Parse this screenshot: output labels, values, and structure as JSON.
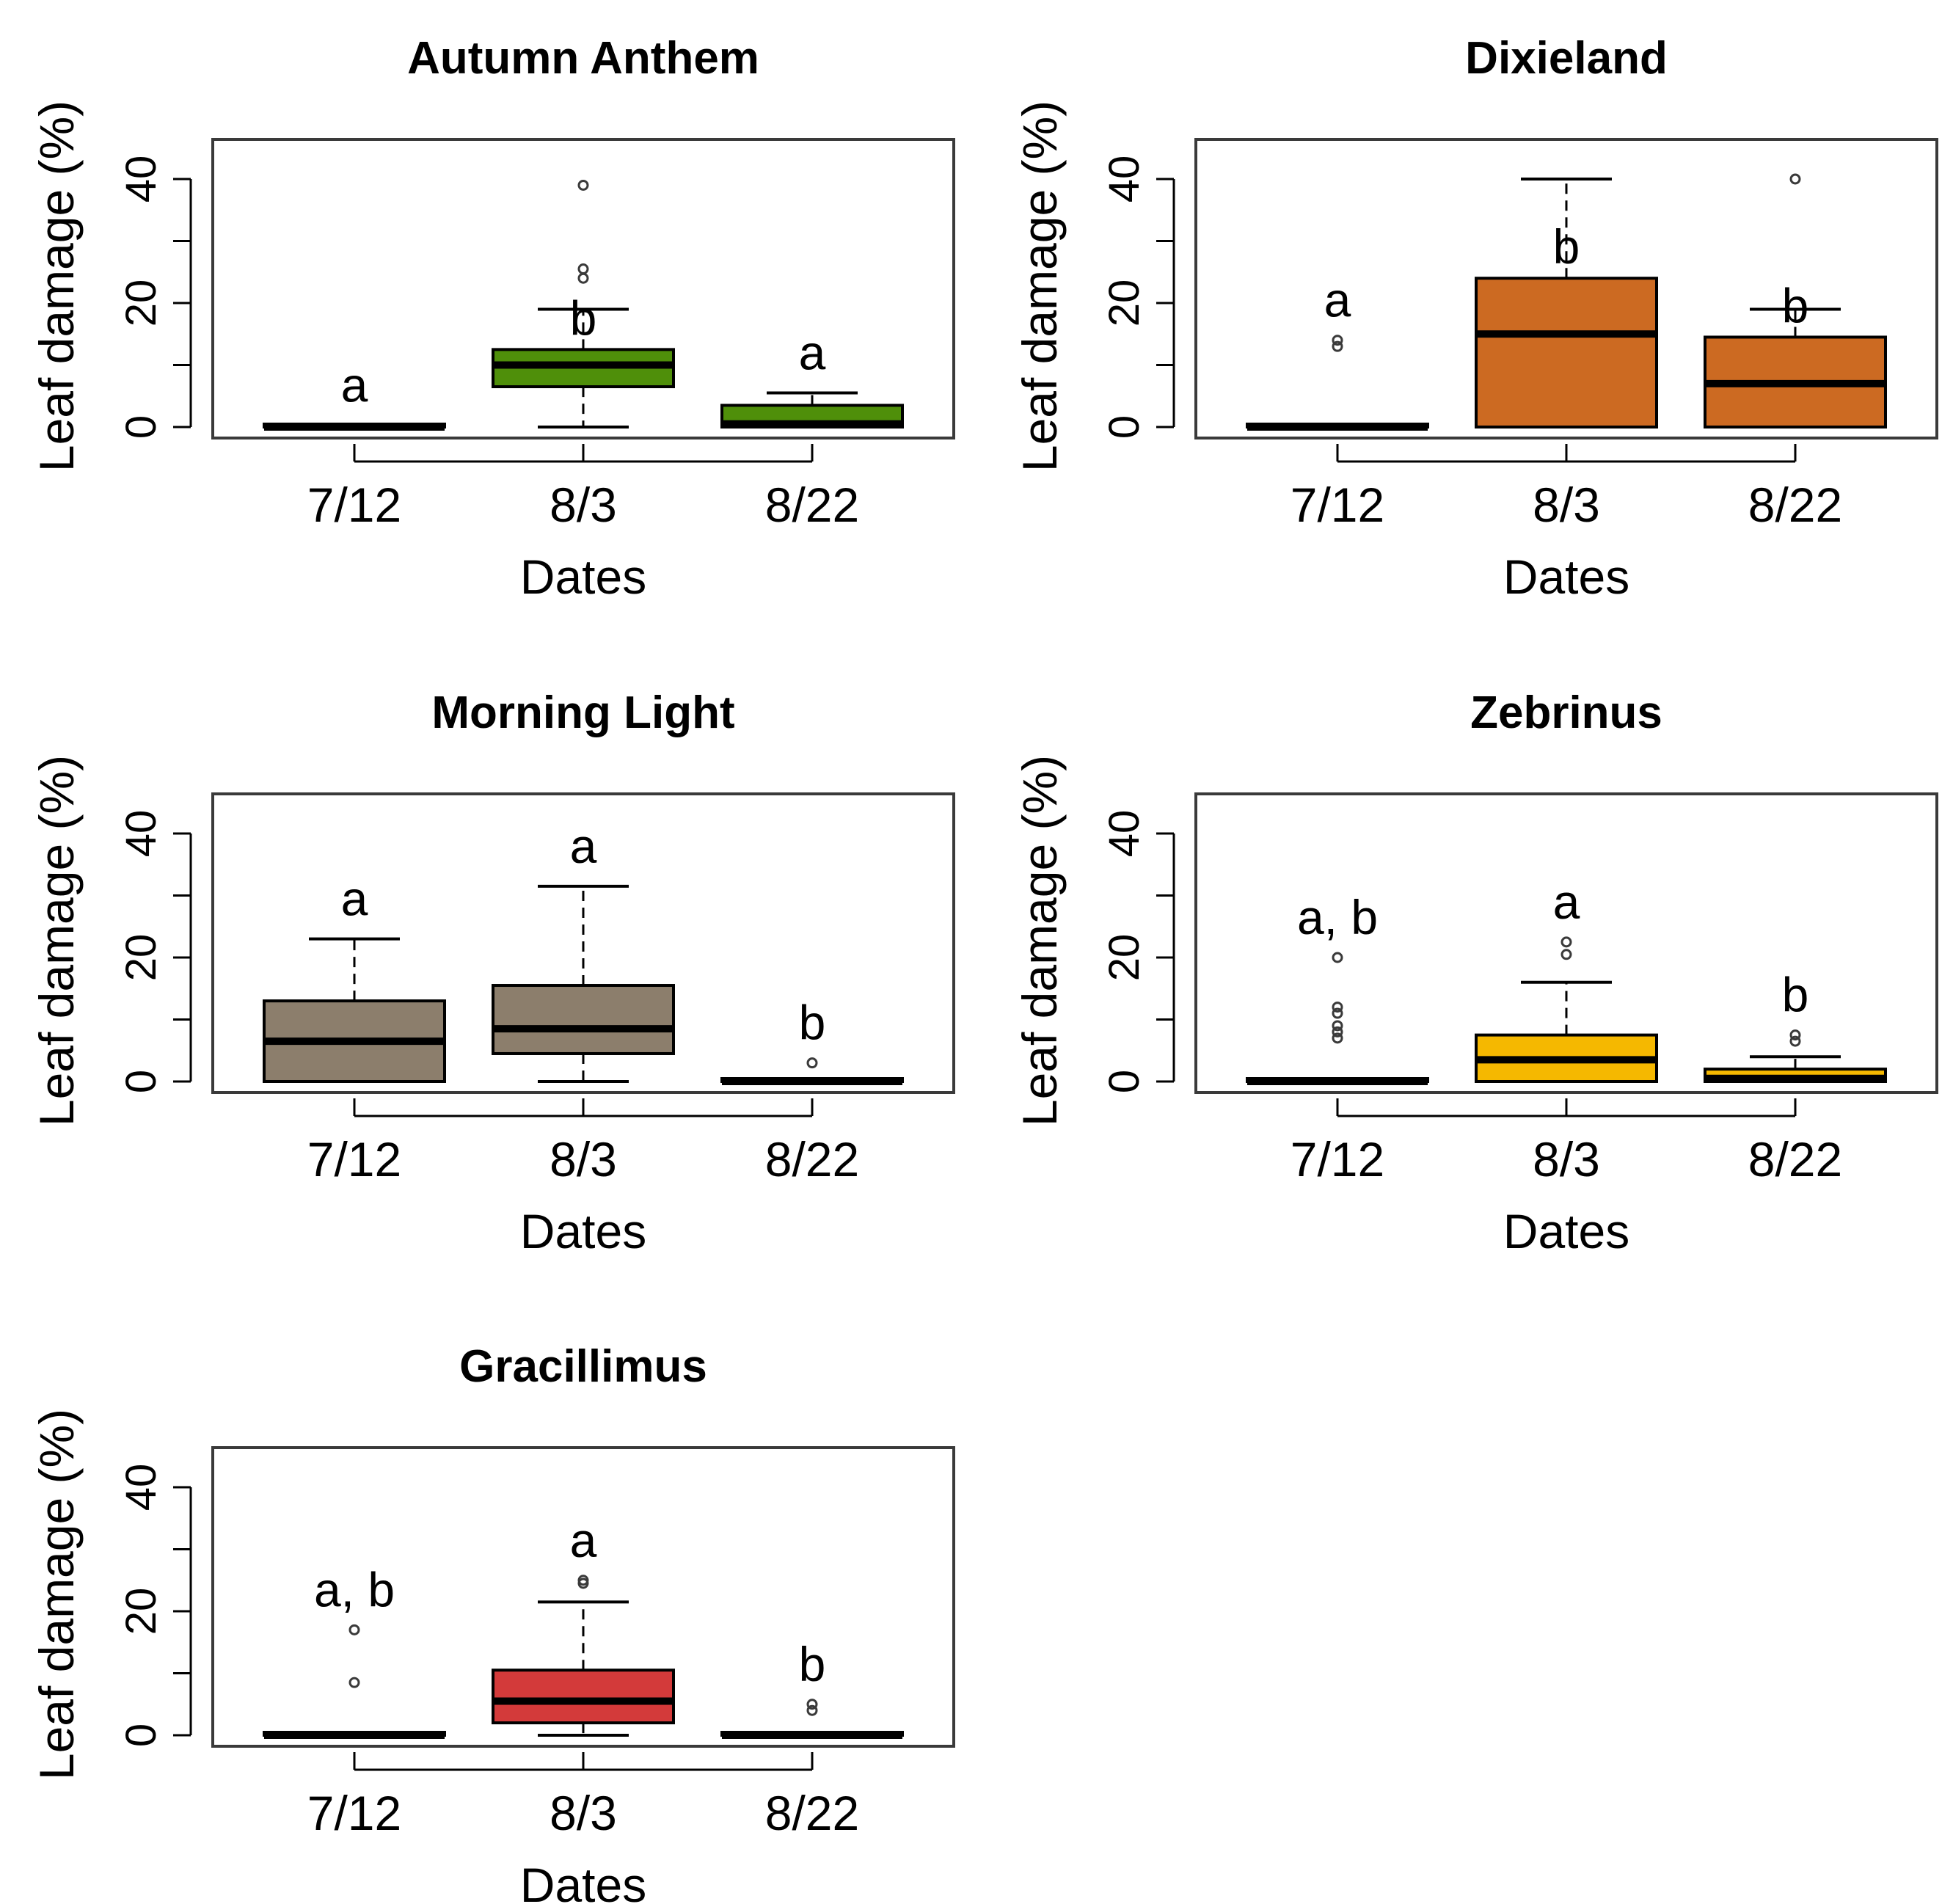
{
  "figure": {
    "xlabel": "Dates",
    "ylabel": "Leaf damage (%)",
    "ylim": [
      -1,
      47
    ],
    "yticks": [
      0,
      20,
      40
    ],
    "yminor": [
      10,
      30
    ],
    "categories": [
      "7/12",
      "8/3",
      "8/22"
    ]
  },
  "chart_data": [
    {
      "type": "boxplot",
      "title": "Autumn Anthem",
      "xlabel": "Dates",
      "ylabel": "Leaf damage (%)",
      "color": "#4f8f0a",
      "categories": [
        "7/12",
        "8/3",
        "8/22"
      ],
      "boxes": [
        {
          "q1": 0,
          "median": 0,
          "q3": 0.3,
          "whisker_low": 0,
          "whisker_high": 0.3,
          "outliers": [],
          "letter": "a"
        },
        {
          "q1": 6.5,
          "median": 10,
          "q3": 12.5,
          "whisker_low": 0,
          "whisker_high": 19,
          "outliers": [
            24,
            25.5,
            39
          ],
          "letter": "b"
        },
        {
          "q1": 0,
          "median": 0.5,
          "q3": 3.5,
          "whisker_low": 0,
          "whisker_high": 5.5,
          "outliers": [],
          "letter": "a"
        }
      ]
    },
    {
      "type": "boxplot",
      "title": "Dixieland",
      "xlabel": "Dates",
      "ylabel": "Leaf damage (%)",
      "color": "#cc6a22",
      "categories": [
        "7/12",
        "8/3",
        "8/22"
      ],
      "boxes": [
        {
          "q1": 0,
          "median": 0,
          "q3": 0.3,
          "whisker_low": 0,
          "whisker_high": 0.3,
          "outliers": [
            13,
            14
          ],
          "letter": "a"
        },
        {
          "q1": 0,
          "median": 15,
          "q3": 24,
          "whisker_low": 0,
          "whisker_high": 40,
          "outliers": [],
          "letter": "b"
        },
        {
          "q1": 0,
          "median": 7,
          "q3": 14.5,
          "whisker_low": 0,
          "whisker_high": 19,
          "outliers": [
            40
          ],
          "letter": "b"
        }
      ]
    },
    {
      "type": "boxplot",
      "title": "Morning Light",
      "xlabel": "Dates",
      "ylabel": "Leaf damage (%)",
      "color": "#8c7e6c",
      "categories": [
        "7/12",
        "8/3",
        "8/22"
      ],
      "boxes": [
        {
          "q1": 0,
          "median": 6.5,
          "q3": 13,
          "whisker_low": 0,
          "whisker_high": 23,
          "outliers": [],
          "letter": "a"
        },
        {
          "q1": 4.5,
          "median": 8.5,
          "q3": 15.5,
          "whisker_low": 0,
          "whisker_high": 31.5,
          "outliers": [],
          "letter": "a"
        },
        {
          "q1": 0,
          "median": 0,
          "q3": 0.3,
          "whisker_low": 0,
          "whisker_high": 0.3,
          "outliers": [
            3
          ],
          "letter": "b"
        }
      ]
    },
    {
      "type": "boxplot",
      "title": "Zebrinus",
      "xlabel": "Dates",
      "ylabel": "Leaf damage (%)",
      "color": "#f5b800",
      "categories": [
        "7/12",
        "8/3",
        "8/22"
      ],
      "boxes": [
        {
          "q1": 0,
          "median": 0,
          "q3": 0.3,
          "whisker_low": 0,
          "whisker_high": 0.3,
          "outliers": [
            7,
            8,
            9,
            11,
            12,
            20
          ],
          "letter": "a, b"
        },
        {
          "q1": 0,
          "median": 3.5,
          "q3": 7.5,
          "whisker_low": 0,
          "whisker_high": 16,
          "outliers": [
            20.5,
            22.5
          ],
          "letter": "a"
        },
        {
          "q1": 0,
          "median": 0.5,
          "q3": 2,
          "whisker_low": 0,
          "whisker_high": 4,
          "outliers": [
            6.5,
            7.5
          ],
          "letter": "b"
        }
      ]
    },
    {
      "type": "boxplot",
      "title": "Gracillimus",
      "xlabel": "Dates",
      "ylabel": "Leaf damage (%)",
      "color": "#d33a3a",
      "categories": [
        "7/12",
        "8/3",
        "8/22"
      ],
      "boxes": [
        {
          "q1": 0,
          "median": 0,
          "q3": 0.3,
          "whisker_low": 0,
          "whisker_high": 0.3,
          "outliers": [
            8.5,
            17
          ],
          "letter": "a, b"
        },
        {
          "q1": 2,
          "median": 5.5,
          "q3": 10.5,
          "whisker_low": 0,
          "whisker_high": 21.5,
          "outliers": [
            24.5,
            25
          ],
          "letter": "a"
        },
        {
          "q1": 0,
          "median": 0,
          "q3": 0.3,
          "whisker_low": 0,
          "whisker_high": 0.3,
          "outliers": [
            4,
            5
          ],
          "letter": "b"
        }
      ]
    }
  ]
}
